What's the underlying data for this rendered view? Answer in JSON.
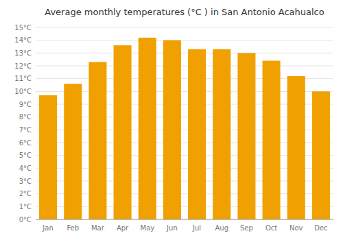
{
  "chart_data": {
    "type": "bar",
    "title": "Average monthly temperatures (°C ) in San Antonio Acahualco",
    "categories": [
      "Jan",
      "Feb",
      "Mar",
      "Apr",
      "May",
      "Jun",
      "Jul",
      "Aug",
      "Sep",
      "Oct",
      "Nov",
      "Dec"
    ],
    "values": [
      9.7,
      10.6,
      12.3,
      13.6,
      14.2,
      14.0,
      13.3,
      13.3,
      13.0,
      12.4,
      11.2,
      10.0
    ],
    "color": "#F0A000",
    "ylim": [
      0,
      15
    ],
    "yticks": [
      {
        "value": 0,
        "label": "0°C"
      },
      {
        "value": 1,
        "label": "1°C"
      },
      {
        "value": 2,
        "label": "2°C"
      },
      {
        "value": 3,
        "label": "3°C"
      },
      {
        "value": 4,
        "label": "4°C"
      },
      {
        "value": 5,
        "label": "5°C"
      },
      {
        "value": 6,
        "label": "6°C"
      },
      {
        "value": 7,
        "label": "7°C"
      },
      {
        "value": 8,
        "label": "8°C"
      },
      {
        "value": 9,
        "label": "9°C"
      },
      {
        "value": 10,
        "label": "10°C"
      },
      {
        "value": 11,
        "label": "11°C"
      },
      {
        "value": 12,
        "label": "12°C"
      },
      {
        "value": 13,
        "label": "13°C"
      },
      {
        "value": 14,
        "label": "14°C"
      },
      {
        "value": 15,
        "label": "15°C"
      }
    ],
    "grid": true
  }
}
